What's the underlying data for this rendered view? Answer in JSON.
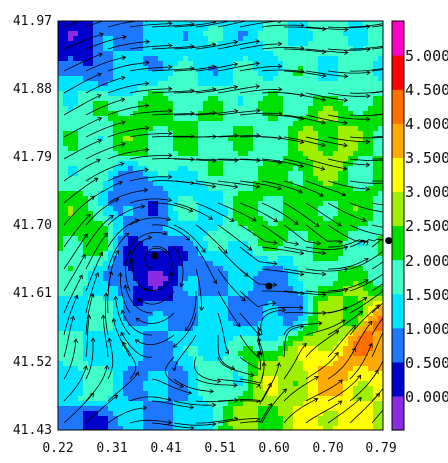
{
  "chart_data": {
    "type": "heatmap",
    "title": "",
    "xlabel": "",
    "ylabel": "",
    "xlim": [
      0.22,
      0.79
    ],
    "ylim": [
      41.43,
      41.97
    ],
    "x_ticks": [
      "0.22",
      "0.31",
      "0.41",
      "0.51",
      "0.60",
      "0.70",
      "0.79"
    ],
    "y_ticks": [
      "41.97",
      "41.88",
      "41.79",
      "41.70",
      "41.61",
      "41.52",
      "41.43"
    ],
    "colorbar": {
      "min": -0.5,
      "max": 5.5,
      "labels": [
        "0.000",
        "0.500",
        "1.000",
        "1.500",
        "2.000",
        "2.500",
        "3.000",
        "3.500",
        "4.000",
        "4.500",
        "5.000"
      ],
      "level_colors": [
        "#8a2be2",
        "#0000cd",
        "#1e78ff",
        "#00e5ff",
        "#40ffc8",
        "#00e000",
        "#a0ee00",
        "#ffff00",
        "#ffaa00",
        "#ff7000",
        "#ff0000",
        "#ff00c8"
      ]
    },
    "overlay": "streamlines",
    "markers": [
      {
        "x": 0.39,
        "y": 41.66
      },
      {
        "x": 0.59,
        "y": 41.62
      },
      {
        "x": 0.8,
        "y": 41.68
      }
    ],
    "field_samples": [
      {
        "x": 0.26,
        "y": 41.94,
        "v": 0.3
      },
      {
        "x": 0.32,
        "y": 41.92,
        "v": 1.0
      },
      {
        "x": 0.5,
        "y": 41.93,
        "v": 1.3
      },
      {
        "x": 0.72,
        "y": 41.92,
        "v": 1.6
      },
      {
        "x": 0.26,
        "y": 41.84,
        "v": 1.8
      },
      {
        "x": 0.36,
        "y": 41.83,
        "v": 2.2
      },
      {
        "x": 0.46,
        "y": 41.82,
        "v": 2.0
      },
      {
        "x": 0.58,
        "y": 41.82,
        "v": 1.9
      },
      {
        "x": 0.7,
        "y": 41.8,
        "v": 2.6
      },
      {
        "x": 0.77,
        "y": 41.78,
        "v": 2.0
      },
      {
        "x": 0.26,
        "y": 41.7,
        "v": 2.2
      },
      {
        "x": 0.36,
        "y": 41.73,
        "v": 0.7
      },
      {
        "x": 0.46,
        "y": 41.72,
        "v": 1.4
      },
      {
        "x": 0.58,
        "y": 41.72,
        "v": 2.1
      },
      {
        "x": 0.7,
        "y": 41.71,
        "v": 2.2
      },
      {
        "x": 0.77,
        "y": 41.66,
        "v": 1.8
      },
      {
        "x": 0.27,
        "y": 41.58,
        "v": 1.5
      },
      {
        "x": 0.39,
        "y": 41.64,
        "v": 0.2
      },
      {
        "x": 0.49,
        "y": 41.6,
        "v": 1.0
      },
      {
        "x": 0.6,
        "y": 41.6,
        "v": 0.8
      },
      {
        "x": 0.72,
        "y": 41.58,
        "v": 2.5
      },
      {
        "x": 0.77,
        "y": 41.55,
        "v": 4.0
      },
      {
        "x": 0.27,
        "y": 41.48,
        "v": 1.6
      },
      {
        "x": 0.4,
        "y": 41.5,
        "v": 0.9
      },
      {
        "x": 0.5,
        "y": 41.5,
        "v": 1.6
      },
      {
        "x": 0.61,
        "y": 41.49,
        "v": 2.8
      },
      {
        "x": 0.71,
        "y": 41.5,
        "v": 3.6
      },
      {
        "x": 0.77,
        "y": 41.47,
        "v": 3.0
      },
      {
        "x": 0.26,
        "y": 41.44,
        "v": 0.4
      },
      {
        "x": 0.42,
        "y": 41.44,
        "v": 1.0
      },
      {
        "x": 0.56,
        "y": 41.44,
        "v": 2.5
      },
      {
        "x": 0.7,
        "y": 41.44,
        "v": 3.2
      }
    ]
  }
}
